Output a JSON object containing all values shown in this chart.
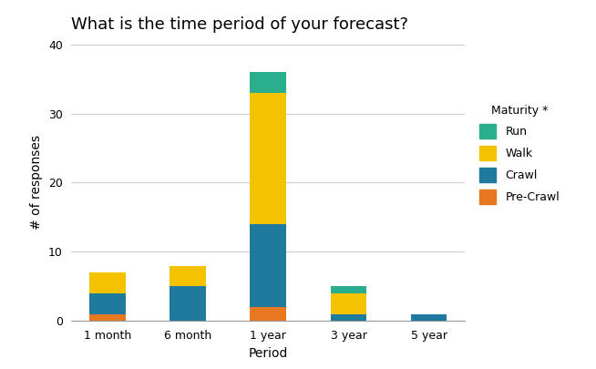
{
  "title": "What is the time period of your forecast?",
  "xlabel": "Period",
  "ylabel": "# of responses",
  "categories": [
    "1 month",
    "6 month",
    "1 year",
    "3 year",
    "5 year"
  ],
  "series": {
    "Pre-Crawl": [
      1,
      0,
      2,
      0,
      0
    ],
    "Crawl": [
      3,
      5,
      12,
      1,
      1
    ],
    "Walk": [
      3,
      3,
      19,
      3,
      0
    ],
    "Run": [
      0,
      0,
      3,
      1,
      0
    ]
  },
  "colors": {
    "Pre-Crawl": "#E87722",
    "Crawl": "#1F7A9E",
    "Walk": "#F5C200",
    "Run": "#2BAE8E"
  },
  "legend_title": "Maturity *",
  "ylim": [
    0,
    40
  ],
  "yticks": [
    0,
    10,
    20,
    30,
    40
  ],
  "background_color": "#ffffff",
  "grid_color": "#cccccc",
  "title_fontsize": 13,
  "axis_label_fontsize": 10,
  "tick_fontsize": 9,
  "legend_fontsize": 9,
  "bar_width": 0.45
}
